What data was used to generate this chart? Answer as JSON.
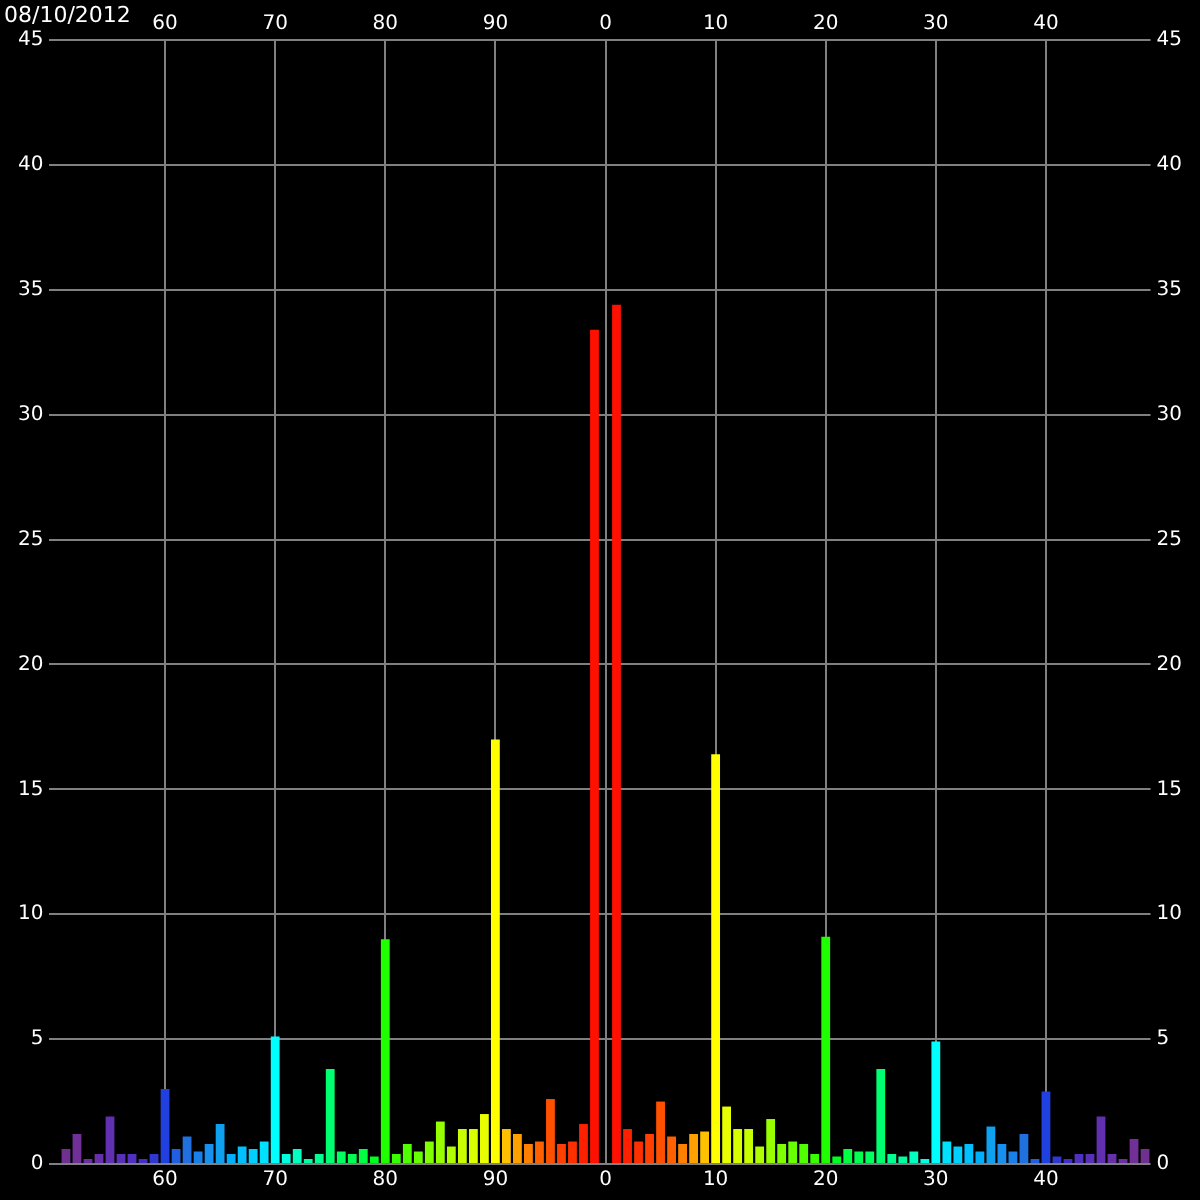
{
  "chart_data": {
    "type": "bar",
    "annotations": [
      "08/10/2012"
    ],
    "categories": [
      null,
      null,
      null,
      null,
      null,
      null,
      null,
      null,
      null,
      null,
      "60",
      null,
      null,
      null,
      null,
      null,
      null,
      null,
      null,
      null,
      "70",
      null,
      null,
      null,
      null,
      null,
      null,
      null,
      null,
      null,
      "80",
      null,
      null,
      null,
      null,
      null,
      null,
      null,
      null,
      null,
      "90",
      null,
      null,
      null,
      null,
      null,
      null,
      null,
      null,
      null,
      "0",
      null,
      null,
      null,
      null,
      null,
      null,
      null,
      null,
      null,
      "10",
      null,
      null,
      null,
      null,
      null,
      null,
      null,
      null,
      null,
      "20",
      null,
      null,
      null,
      null,
      null,
      null,
      null,
      null,
      null,
      "30",
      null,
      null,
      null,
      null,
      null,
      null,
      null,
      null,
      null,
      "40",
      null,
      null,
      null,
      null,
      null,
      null,
      null,
      null,
      null
    ],
    "values": [
      null,
      0.6,
      1.2,
      0.2,
      0.4,
      1.9,
      0.4,
      0.4,
      0.2,
      0.4,
      3.0,
      0.6,
      1.1,
      0.5,
      0.8,
      1.6,
      0.4,
      0.7,
      0.6,
      0.9,
      5.1,
      0.4,
      0.6,
      0.2,
      0.4,
      3.8,
      0.5,
      0.4,
      0.6,
      0.3,
      9.0,
      0.4,
      0.8,
      0.5,
      0.9,
      1.7,
      0.7,
      1.4,
      1.4,
      2.0,
      17.0,
      1.4,
      1.2,
      0.8,
      0.9,
      2.6,
      0.8,
      0.9,
      1.6,
      33.4,
      0,
      34.4,
      1.4,
      0.9,
      1.2,
      2.5,
      1.1,
      0.8,
      1.2,
      1.3,
      16.4,
      2.3,
      1.4,
      1.4,
      0.7,
      1.8,
      0.8,
      0.9,
      0.8,
      0.4,
      9.1,
      0.3,
      0.6,
      0.5,
      0.5,
      3.8,
      0.4,
      0.3,
      0.5,
      0.2,
      4.9,
      0.9,
      0.7,
      0.8,
      0.5,
      1.5,
      0.8,
      0.5,
      1.2,
      0.2,
      2.9,
      0.3,
      0.2,
      0.4,
      0.4,
      1.9,
      0.4,
      0.2,
      1.0,
      0.6
    ],
    "colors": [
      "#703088",
      "#703090",
      "#703098",
      "#6830a0",
      "#6830a8",
      "#6030b0",
      "#5830b8",
      "#5030c0",
      "#4030c8",
      "#3038d0",
      "#2040e0",
      "#2060e0",
      "#2070e0",
      "#1880e8",
      "#1890f0",
      "#10a0f0",
      "#00b0ff",
      "#00c0ff",
      "#00d0ff",
      "#00e0ff",
      "#00ffff",
      "#00ffe0",
      "#00ffc0",
      "#00ffa0",
      "#00ff90",
      "#00ff70",
      "#00ff60",
      "#00ff50",
      "#00ff40",
      "#00ff20",
      "#20ff00",
      "#38ff00",
      "#50ff00",
      "#68ff00",
      "#80ff00",
      "#98ff00",
      "#b0ff00",
      "#c8ff00",
      "#d8ff00",
      "#e8ff00",
      "#ffff00",
      "#ffc000",
      "#ffa000",
      "#ff8000",
      "#ff6000",
      "#ff5000",
      "#ff4000",
      "#ff3000",
      "#ff2000",
      "#ff1000",
      "#ff0000",
      "#ff1000",
      "#ff2000",
      "#ff3000",
      "#ff4000",
      "#ff5000",
      "#ff6000",
      "#ff8000",
      "#ffa000",
      "#ffc000",
      "#ffff00",
      "#e8ff00",
      "#d8ff00",
      "#c8ff00",
      "#b0ff00",
      "#98ff00",
      "#80ff00",
      "#68ff00",
      "#50ff00",
      "#38ff00",
      "#20ff00",
      "#00ff20",
      "#00ff40",
      "#00ff50",
      "#00ff60",
      "#00ff70",
      "#00ff90",
      "#00ffa0",
      "#00ffc0",
      "#00ffe0",
      "#00ffff",
      "#00e0ff",
      "#00d0ff",
      "#00c0ff",
      "#00b0ff",
      "#10a0f0",
      "#1890f0",
      "#1880e8",
      "#2070e0",
      "#2060e0",
      "#2040e0",
      "#3038d0",
      "#4030c8",
      "#5030c0",
      "#5830b8",
      "#6030b0",
      "#6830a8",
      "#6830a0",
      "#703098",
      "#703090"
    ],
    "ylim": [
      0,
      45
    ],
    "yticks": [
      0,
      5,
      10,
      15,
      20,
      25,
      30,
      35,
      40,
      45
    ],
    "y2lim": [
      0,
      45
    ],
    "y2ticks": [
      0,
      5,
      10,
      15,
      20,
      25,
      30,
      35,
      40,
      45
    ],
    "grid": true,
    "legend": false
  }
}
